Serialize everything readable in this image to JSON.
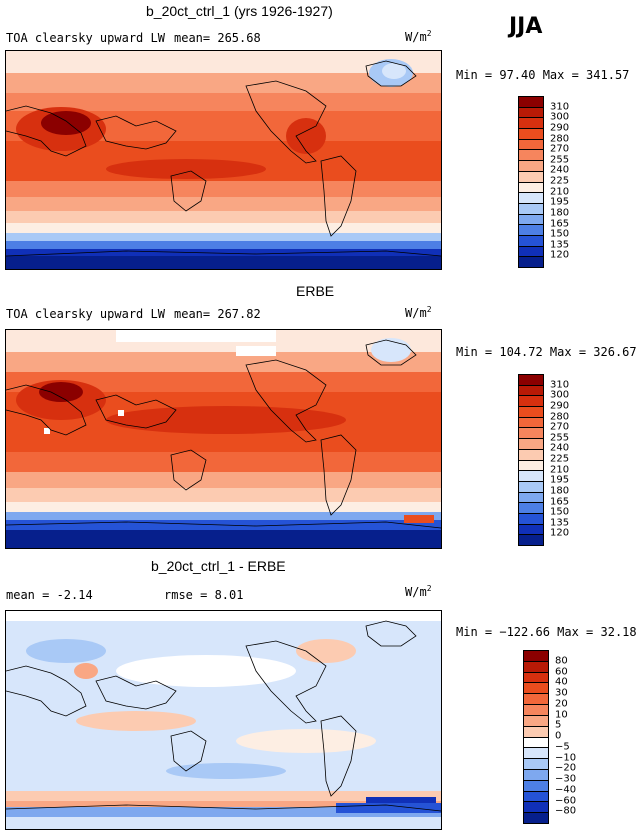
{
  "season": "JJA",
  "panels": [
    {
      "title": "b_20ct_ctrl_1 (yrs 1926-1927)",
      "var_label": "TOA clearsky upward LW",
      "mean_text": "mean= 265.68",
      "rmse_text": "",
      "units": "W/m",
      "units_exp": "2",
      "minmax": "Min =   97.40 Max = 341.57",
      "colorbar": {
        "levels": [
          "310",
          "300",
          "290",
          "280",
          "270",
          "255",
          "240",
          "225",
          "210",
          "195",
          "180",
          "165",
          "150",
          "135",
          "120"
        ],
        "colors": [
          "#8b0000",
          "#b81a06",
          "#d7300f",
          "#ea4d1e",
          "#f2673a",
          "#f6855d",
          "#f9a784",
          "#fccbb1",
          "#fdeee3",
          "#d7e6fb",
          "#a9c9f6",
          "#7ea8ef",
          "#4d7fe5",
          "#2553d6",
          "#1030b8",
          "#061f8c"
        ]
      }
    },
    {
      "title": "ERBE",
      "var_label": "TOA clearsky upward LW",
      "mean_text": "mean= 267.82",
      "rmse_text": "",
      "units": "W/m",
      "units_exp": "2",
      "minmax": "Min = 104.72 Max = 326.67",
      "colorbar": {
        "levels": [
          "310",
          "300",
          "290",
          "280",
          "270",
          "255",
          "240",
          "225",
          "210",
          "195",
          "180",
          "165",
          "150",
          "135",
          "120"
        ],
        "colors": [
          "#8b0000",
          "#b81a06",
          "#d7300f",
          "#ea4d1e",
          "#f2673a",
          "#f6855d",
          "#f9a784",
          "#fccbb1",
          "#fdeee3",
          "#d7e6fb",
          "#a9c9f6",
          "#7ea8ef",
          "#4d7fe5",
          "#2553d6",
          "#1030b8",
          "#061f8c"
        ]
      }
    },
    {
      "title": "b_20ct_ctrl_1 - ERBE",
      "var_label": "",
      "mean_text": "mean =   -2.14",
      "rmse_text": "rmse =   8.01",
      "units": "W/m",
      "units_exp": "2",
      "minmax": "Min = −122.66 Max =  32.18",
      "colorbar": {
        "levels": [
          "80",
          "60",
          "40",
          "30",
          "20",
          "10",
          "5",
          "0",
          "−5",
          "−10",
          "−20",
          "−30",
          "−40",
          "−60",
          "−80"
        ],
        "colors": [
          "#8b0000",
          "#b81a06",
          "#d7300f",
          "#ea4d1e",
          "#f2673a",
          "#f6855d",
          "#f9a784",
          "#fccbb1",
          "#ffffff",
          "#d7e6fb",
          "#a9c9f6",
          "#7ea8ef",
          "#4d7fe5",
          "#2553d6",
          "#1030b8",
          "#061f8c"
        ]
      }
    }
  ]
}
